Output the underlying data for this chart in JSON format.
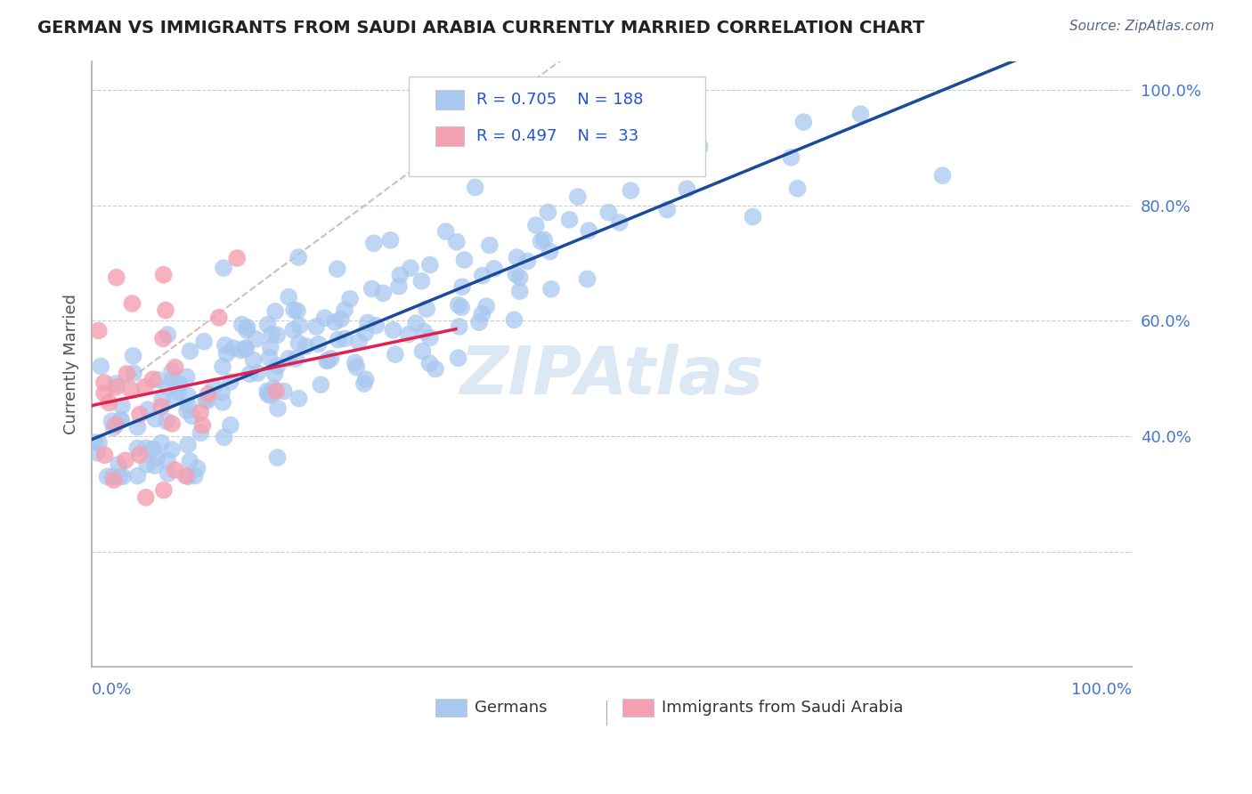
{
  "title": "GERMAN VS IMMIGRANTS FROM SAUDI ARABIA CURRENTLY MARRIED CORRELATION CHART",
  "source": "Source: ZipAtlas.com",
  "ylabel": "Currently Married",
  "legend_label_1": "Germans",
  "legend_label_2": "Immigrants from Saudi Arabia",
  "r1": 0.705,
  "n1": 188,
  "r2": 0.497,
  "n2": 33,
  "blue_color": "#a8c8f0",
  "pink_color": "#f4a0b0",
  "blue_line_color": "#1a4a9a",
  "pink_line_color": "#e02050",
  "diag_line_color": "#c0a0a0",
  "title_color": "#222222",
  "axis_label_color": "#4477cc",
  "legend_r_color": "#2255cc",
  "watermark_color": "#dde8f5",
  "background_color": "#ffffff",
  "grid_color": "#cccccc",
  "xlim": [
    0.0,
    1.0
  ],
  "ylim": [
    0.0,
    1.05
  ]
}
